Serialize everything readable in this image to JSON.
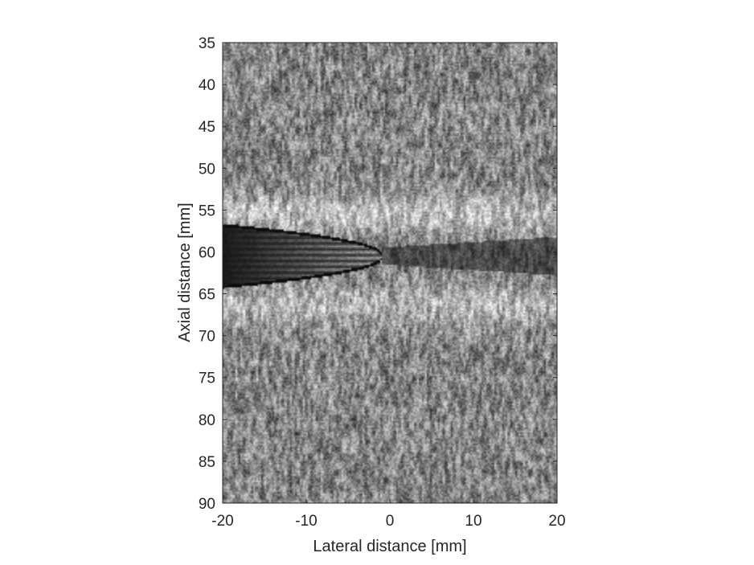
{
  "chart_data": {
    "type": "heatmap",
    "title": "",
    "xlabel": "Lateral distance [mm]",
    "ylabel": "Axial distance [mm]",
    "xlim": [
      -20,
      20
    ],
    "ylim": [
      35,
      90
    ],
    "y_reversed": true,
    "colormap": "gray",
    "grid": false,
    "x_ticks": [
      -20,
      -10,
      0,
      10,
      20
    ],
    "x_tick_labels": [
      "-20",
      "-10",
      "0",
      "10",
      "20"
    ],
    "y_ticks": [
      35,
      40,
      45,
      50,
      55,
      60,
      65,
      70,
      75,
      80,
      85,
      90
    ],
    "y_tick_labels": [
      "35",
      "40",
      "45",
      "50",
      "55",
      "60",
      "65",
      "70",
      "75",
      "80",
      "85",
      "90"
    ],
    "features": {
      "background_speckle_mean": 0.52,
      "bright_bands": [
        {
          "center_y": 55.5,
          "half_width_mm": 2.2,
          "boost": 0.22
        },
        {
          "center_y": 66.5,
          "half_width_mm": 2.5,
          "boost": 0.18
        }
      ],
      "dark_cone": {
        "x_start": -20,
        "x_tip": -1,
        "y_center": 60.5,
        "half_height_at_start": 3.5
      },
      "shadow_tail": {
        "x_start": -1,
        "x_end": 20,
        "y_center": 60.5,
        "half_height_start": 1.0,
        "half_height_end": 2.3
      }
    }
  }
}
